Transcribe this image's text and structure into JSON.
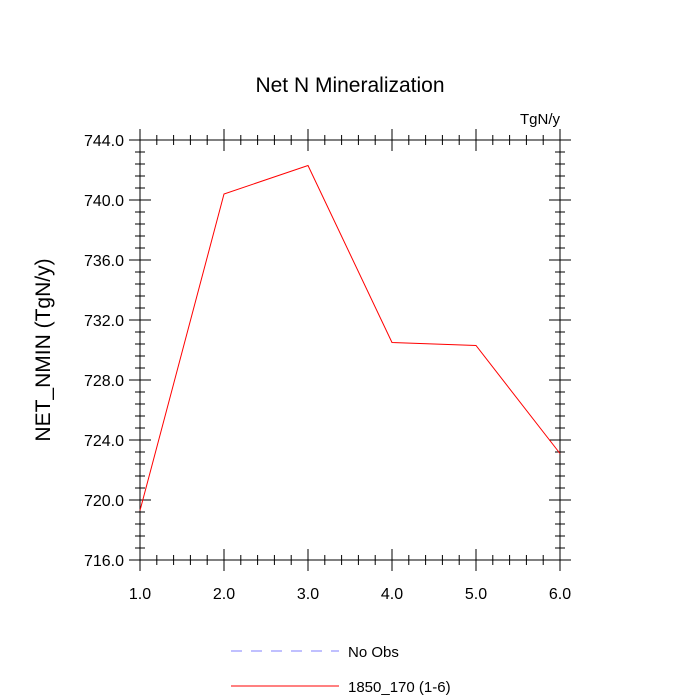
{
  "chart_data": {
    "type": "line",
    "title": "Net N Mineralization",
    "units_label": "TgN/y",
    "ylabel": "NET_NMIN  (TgN/y)",
    "xlabel": "",
    "xlim": [
      1.0,
      6.0
    ],
    "ylim": [
      716.0,
      744.0
    ],
    "x_ticks": [
      1.0,
      2.0,
      3.0,
      4.0,
      5.0,
      6.0
    ],
    "x_tick_labels": [
      "1.0",
      "2.0",
      "3.0",
      "4.0",
      "5.0",
      "6.0"
    ],
    "y_ticks": [
      716.0,
      720.0,
      724.0,
      728.0,
      732.0,
      736.0,
      740.0,
      744.0
    ],
    "y_tick_labels": [
      "716.0",
      "720.0",
      "724.0",
      "728.0",
      "732.0",
      "736.0",
      "740.0",
      "744.0"
    ],
    "grid": false,
    "legend_position": "bottom",
    "series": [
      {
        "name": "1850_170 (1-6)",
        "color": "#ff0000",
        "dash": "solid",
        "x": [
          1.0,
          2.0,
          3.0,
          4.0,
          5.0,
          6.0
        ],
        "y": [
          719.3,
          740.4,
          742.3,
          730.5,
          730.3,
          723.1
        ]
      }
    ],
    "legend": [
      {
        "label": "No Obs",
        "color": "#8080ff",
        "dash": "dashed"
      },
      {
        "label": "1850_170 (1-6)",
        "color": "#ff0000",
        "dash": "solid"
      }
    ]
  }
}
